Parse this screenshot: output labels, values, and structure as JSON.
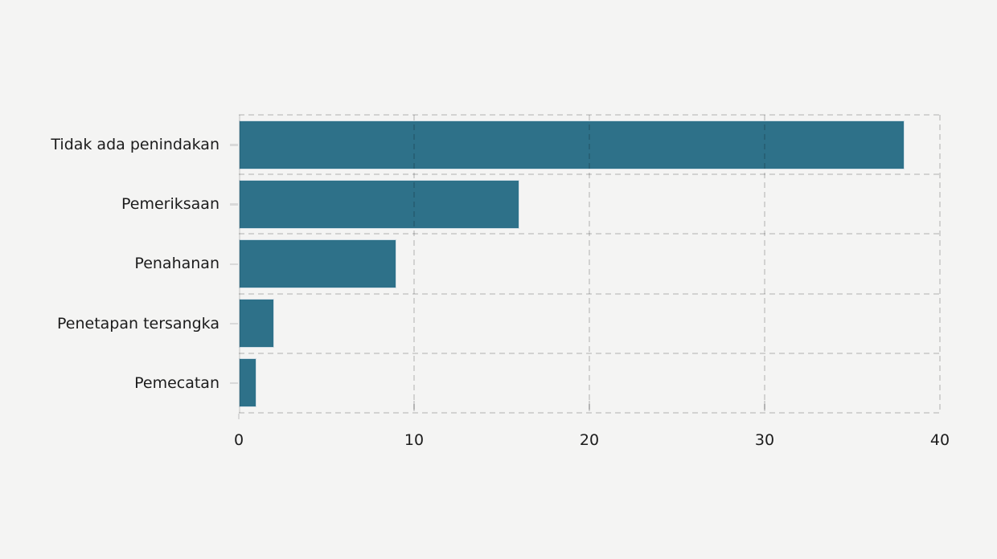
{
  "chart_data": {
    "type": "bar",
    "orientation": "horizontal",
    "title": "",
    "xlabel": "",
    "ylabel": "",
    "categories": [
      "Tidak ada penindakan",
      "Pemeriksaan",
      "Penahanan",
      "Penetapan tersangka",
      "Pemecatan"
    ],
    "values": [
      38,
      16,
      9,
      2,
      1
    ],
    "xlim": [
      0,
      40
    ],
    "xticks": [
      0,
      10,
      20,
      30,
      40
    ],
    "grid": "dashed",
    "legend": null,
    "colors": {
      "background": "#f4f4f3",
      "bar_fill": "#2e7189",
      "bar_edge": "#d2dee5",
      "grid_rgba": "rgba(0,0,0,0.14)",
      "text": "#1c1c1c"
    }
  }
}
